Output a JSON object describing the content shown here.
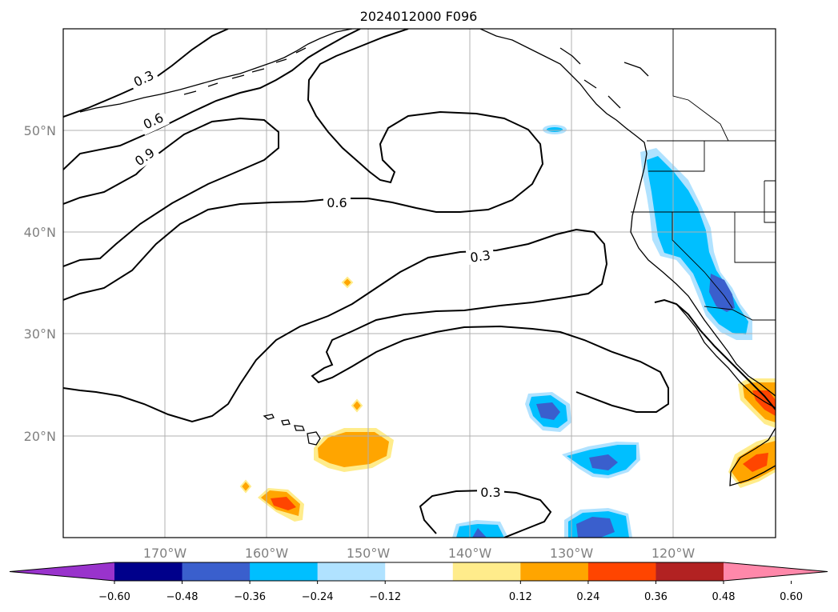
{
  "title": "2024012000 F096",
  "latitude_labels": [
    "50°N",
    "40°N",
    "30°N",
    "20°N"
  ],
  "longitude_labels": [
    "170°W",
    "160°W",
    "150°W",
    "140°W",
    "130°W",
    "120°W"
  ],
  "contour_labels": [
    "0.3",
    "0.6",
    "0.9",
    "0.6",
    "0.3",
    "0.3"
  ],
  "colorbar": {
    "tick_labels": [
      "−0.60",
      "−0.48",
      "−0.36",
      "−0.24",
      "−0.12",
      "0.12",
      "0.24",
      "0.36",
      "0.48",
      "0.60"
    ],
    "colors": [
      "#9933cc",
      "#00008b",
      "#3a5fcd",
      "#00bfff",
      "#b0e2ff",
      "#ffffff",
      "#ffec8b",
      "#ffa500",
      "#ff4500",
      "#b22222",
      "#ff88aa"
    ]
  },
  "colors": {
    "positive_light": "#ffec8b",
    "positive_mid": "#ffa500",
    "positive_high": "#ff4500",
    "negative_light": "#b0e2ff",
    "negative_mid": "#00bfff",
    "negative_high": "#3a5fcd"
  }
}
